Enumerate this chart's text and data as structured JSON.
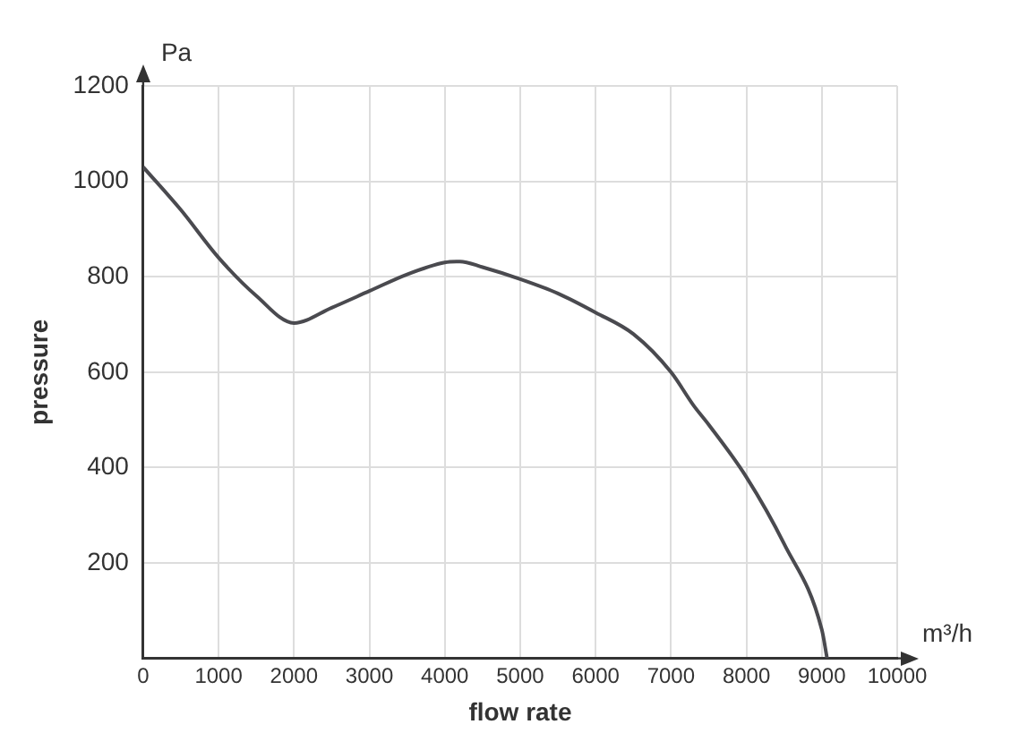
{
  "chart_data": {
    "type": "line",
    "xlabel": "flow rate",
    "ylabel": "pressure",
    "annotations": [
      "Pa",
      "m³/h"
    ],
    "x": [
      0,
      500,
      1000,
      1500,
      2000,
      2500,
      3000,
      3500,
      4000,
      4200,
      4500,
      5000,
      5500,
      6000,
      6500,
      7000,
      7300,
      7500,
      8000,
      8500,
      9000,
      9070
    ],
    "series": [
      {
        "color": "#4a4a4f",
        "values": [
          1030,
          940,
          840,
          760,
          703,
          735,
          770,
          805,
          830,
          832,
          820,
          795,
          765,
          725,
          680,
          600,
          530,
          490,
          380,
          240,
          60,
          0
        ]
      }
    ],
    "xlim": [
      0,
      10000
    ],
    "xticks": [
      0,
      1000,
      2000,
      3000,
      4000,
      5000,
      6000,
      7000,
      8000,
      9000,
      10000
    ],
    "ylim": [
      0,
      1200
    ],
    "yticks": [
      {
        "value": 0,
        "label": null
      },
      200,
      400,
      600,
      800,
      1000,
      1200
    ],
    "grid": true,
    "legend": false,
    "marker": "none",
    "line_style": "solid"
  }
}
